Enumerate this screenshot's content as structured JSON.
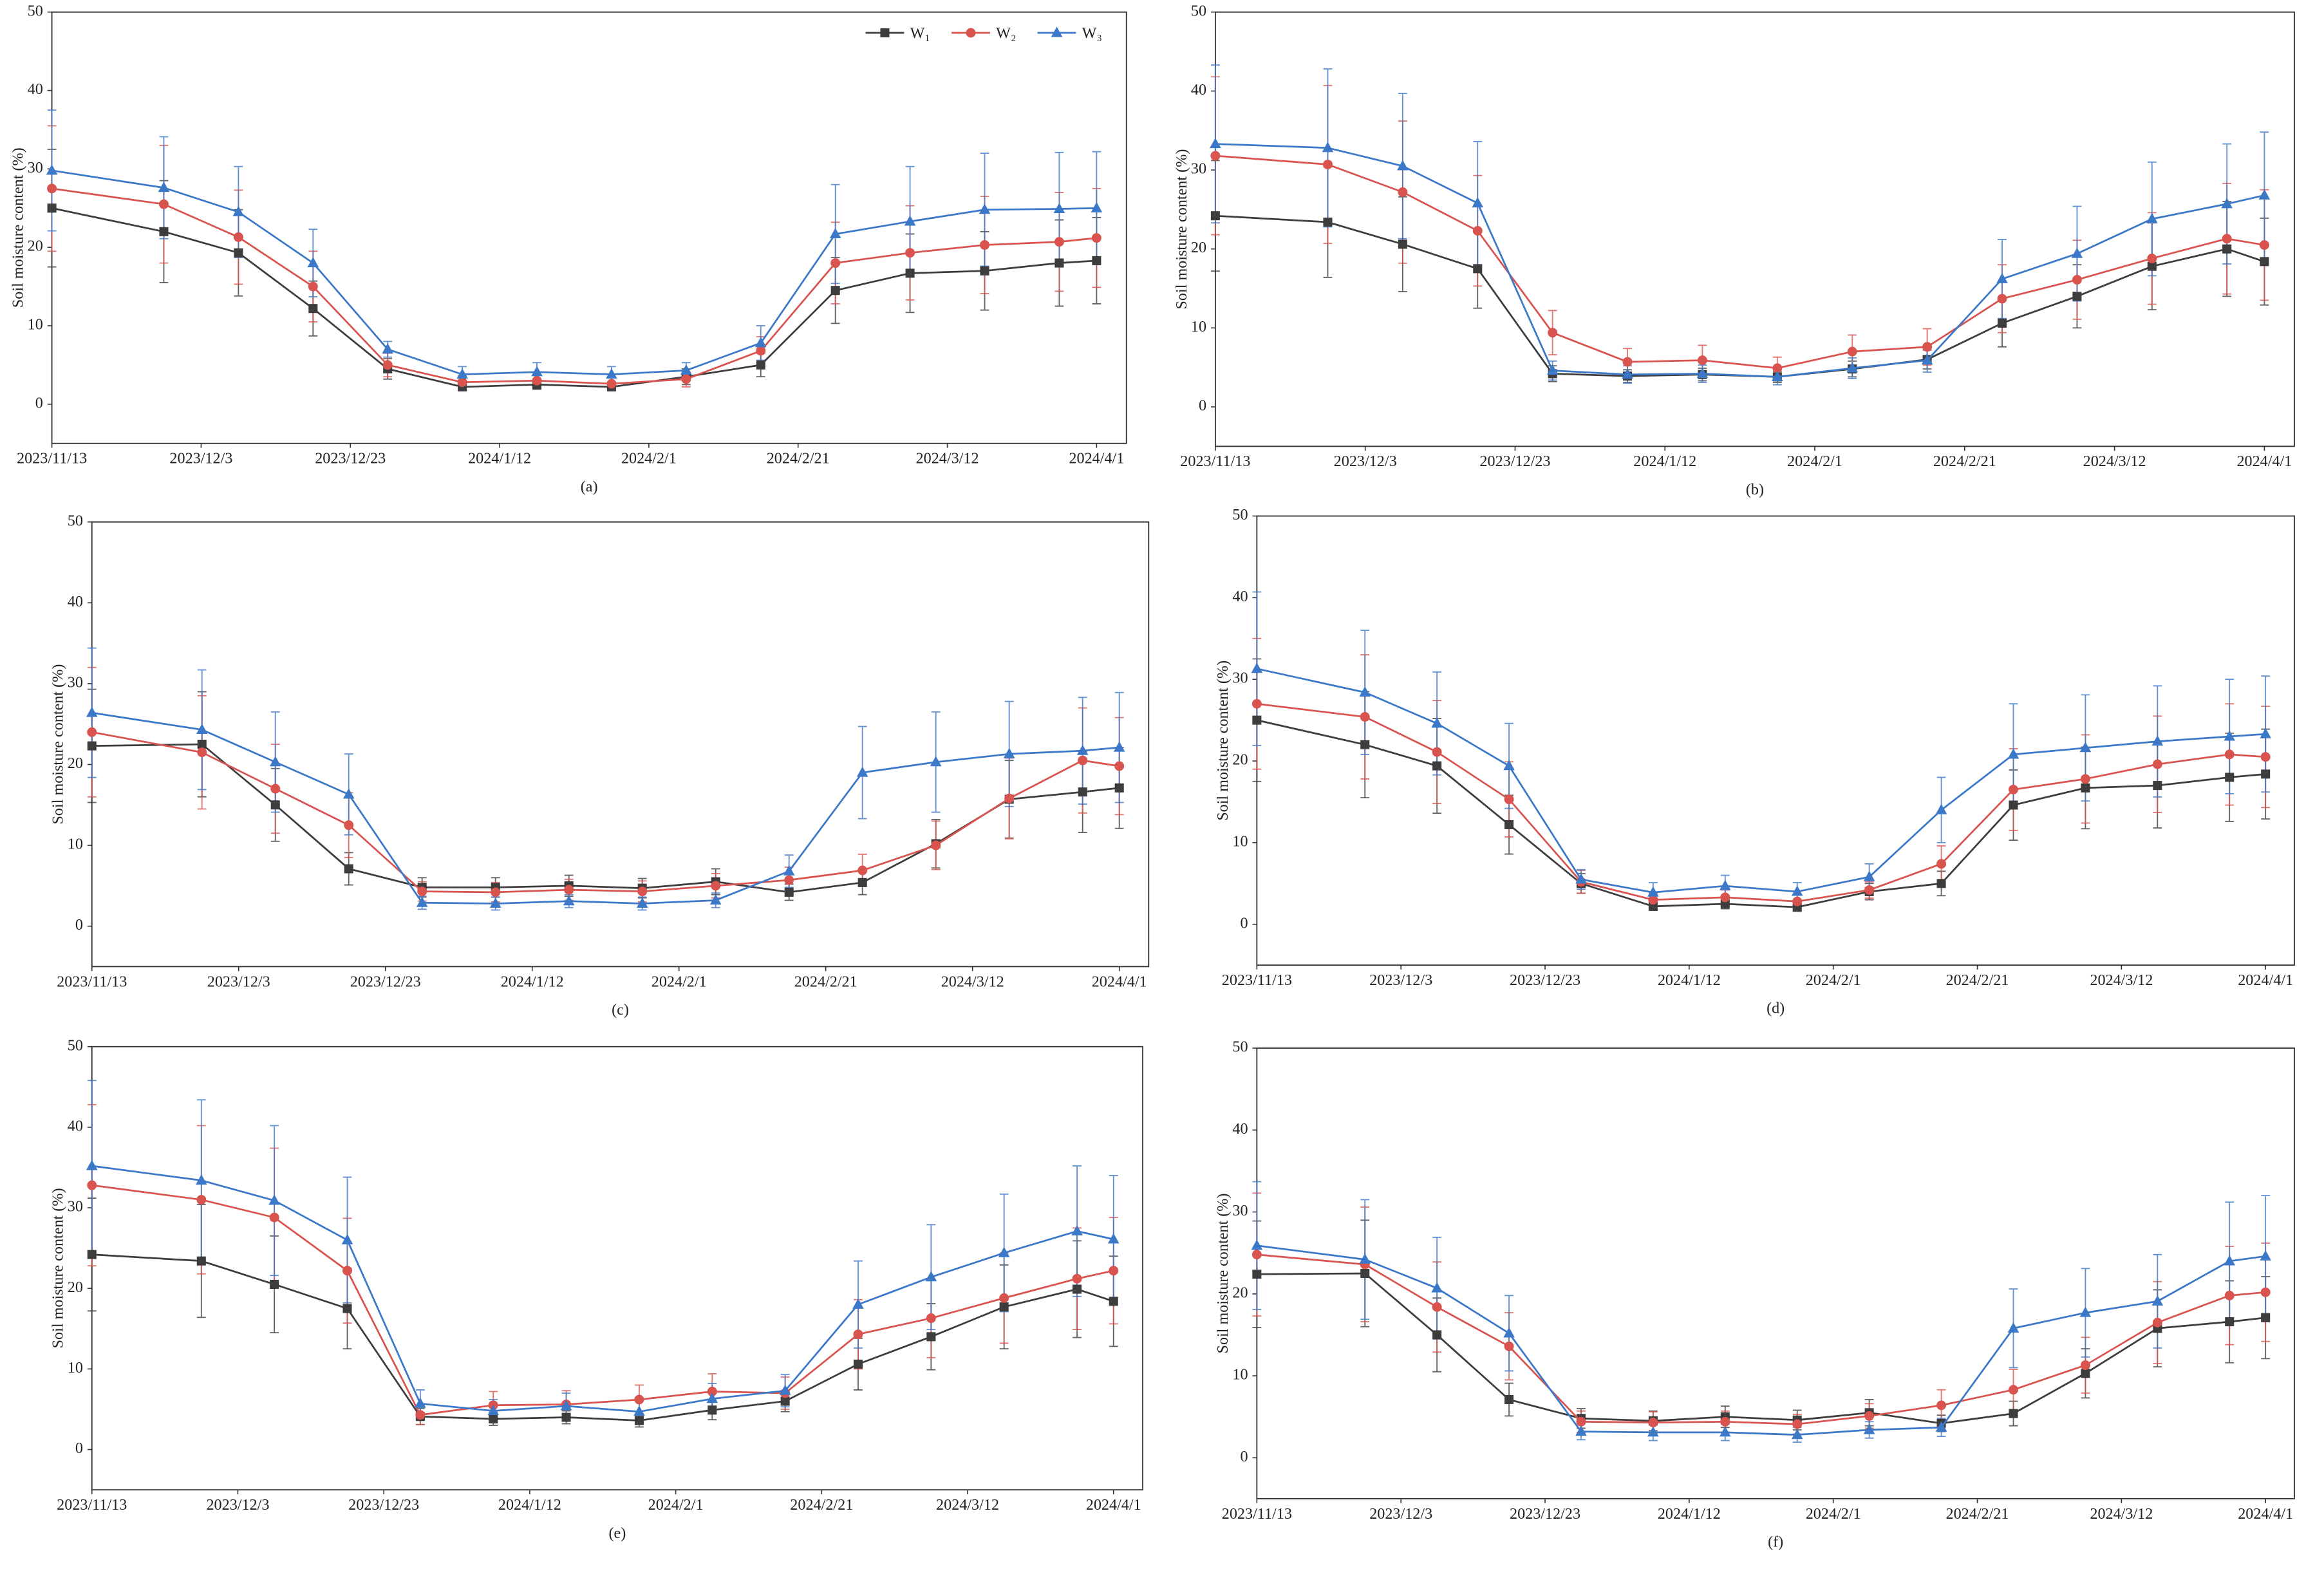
{
  "chart_data": [
    {
      "type": "line",
      "panel_label": "(a)",
      "y_label": "Soil moisture content (%)",
      "x": [
        "2023/11/13",
        "2023/11/28",
        "2023/12/8",
        "2023/12/18",
        "2023/12/28",
        "2024/1/7",
        "2024/1/17",
        "2024/1/27",
        "2024/2/6",
        "2024/2/16",
        "2024/2/26",
        "2024/3/7",
        "2024/3/17",
        "2024/3/27",
        "2024/4/1"
      ],
      "xlim": [
        "2023/11/13",
        "2024/4/5"
      ],
      "xticks": [
        "2023/11/13",
        "2023/12/3",
        "2023/12/23",
        "2024/1/12",
        "2024/2/1",
        "2024/2/21",
        "2024/3/12",
        "2024/4/1"
      ],
      "ylim": [
        -5,
        50
      ],
      "yticks": [
        0,
        10,
        20,
        30,
        40,
        50
      ],
      "legend": "upper right",
      "series": [
        {
          "name": "W₁",
          "color": "#3d3d3d",
          "marker": "square",
          "values": [
            25,
            22,
            19.3,
            12.2,
            4.5,
            2.2,
            2.5,
            2.2,
            3.5,
            5,
            14.5,
            16.7,
            17,
            18,
            18.3
          ],
          "errors": [
            7.5,
            6.5,
            5.5,
            3.5,
            1.3,
            0.5,
            0.6,
            0.5,
            1,
            1.5,
            4.2,
            5,
            5,
            5.5,
            5.5
          ]
        },
        {
          "name": "W₂",
          "color": "#d9534f",
          "marker": "circle",
          "values": [
            27.5,
            25.5,
            21.3,
            15,
            5,
            2.8,
            3,
            2.6,
            3.2,
            6.8,
            18,
            19.3,
            20.3,
            20.7,
            21.2
          ],
          "errors": [
            8,
            7.5,
            6,
            4.5,
            1.5,
            0.8,
            0.8,
            0.8,
            1,
            1.8,
            5.2,
            6,
            6.2,
            6.3,
            6.3
          ]
        },
        {
          "name": "W₃",
          "color": "#3c78c8",
          "marker": "triangle",
          "values": [
            29.8,
            27.6,
            24.5,
            18,
            7,
            3.8,
            4.1,
            3.8,
            4.3,
            7.8,
            21.7,
            23.3,
            24.8,
            24.9,
            25
          ],
          "errors": [
            7.7,
            6.5,
            5.8,
            4.3,
            1,
            1,
            1.2,
            1,
            1,
            2.2,
            6.3,
            7,
            7.2,
            7.2,
            7.2
          ]
        }
      ]
    },
    {
      "type": "line",
      "panel_label": "(b)",
      "y_label": "Soil moisture content (%)",
      "x": [
        "2023/11/13",
        "2023/11/28",
        "2023/12/8",
        "2023/12/18",
        "2023/12/28",
        "2024/1/7",
        "2024/1/17",
        "2024/1/27",
        "2024/2/6",
        "2024/2/16",
        "2024/2/26",
        "2024/3/7",
        "2024/3/17",
        "2024/3/27",
        "2024/4/1"
      ],
      "xlim": [
        "2023/11/13",
        "2024/4/5"
      ],
      "xticks": [
        "2023/11/13",
        "2023/12/3",
        "2023/12/23",
        "2024/1/12",
        "2024/2/1",
        "2024/2/21",
        "2024/3/12",
        "2024/4/1"
      ],
      "ylim": [
        -5,
        50
      ],
      "yticks": [
        0,
        10,
        20,
        30,
        40,
        50
      ],
      "series": [
        {
          "color": "#3d3d3d",
          "marker": "square",
          "values": [
            24.2,
            23.4,
            20.6,
            17.5,
            4.2,
            3.9,
            4.1,
            3.8,
            4.8,
            6,
            10.6,
            14,
            17.8,
            20,
            18.4
          ],
          "errors": [
            7,
            7,
            6,
            5,
            1,
            0.8,
            0.8,
            0.7,
            1,
            1.2,
            3,
            4,
            5.5,
            6,
            5.5
          ]
        },
        {
          "color": "#d9534f",
          "marker": "circle",
          "values": [
            31.8,
            30.7,
            27.2,
            22.3,
            9.4,
            5.7,
            5.9,
            4.9,
            7,
            7.6,
            13.7,
            16.1,
            18.8,
            21.3,
            20.5
          ],
          "errors": [
            10,
            10,
            9,
            7,
            2.8,
            1.7,
            1.9,
            1.4,
            2.1,
            2.3,
            4.3,
            5,
            5.8,
            7,
            7
          ]
        },
        {
          "color": "#3c78c8",
          "marker": "triangle",
          "values": [
            33.3,
            32.8,
            30.5,
            25.8,
            4.6,
            4.1,
            4.2,
            3.8,
            4.9,
            5.9,
            16.2,
            19.4,
            23.8,
            25.7,
            26.8
          ],
          "errors": [
            10,
            10,
            9.2,
            7.8,
            1.2,
            1.1,
            1.1,
            1,
            1.3,
            1.5,
            5,
            6,
            7.2,
            7.6,
            8
          ]
        }
      ]
    },
    {
      "type": "line",
      "panel_label": "(c)",
      "y_label": "Soil moisture content (%)",
      "x": [
        "2023/11/13",
        "2023/11/28",
        "2023/12/8",
        "2023/12/18",
        "2023/12/28",
        "2024/1/7",
        "2024/1/17",
        "2024/1/27",
        "2024/2/6",
        "2024/2/16",
        "2024/2/26",
        "2024/3/7",
        "2024/3/17",
        "2024/3/27",
        "2024/4/1"
      ],
      "xlim": [
        "2023/11/13",
        "2024/4/5"
      ],
      "xticks": [
        "2023/11/13",
        "2023/12/3",
        "2023/12/23",
        "2024/1/12",
        "2024/2/1",
        "2024/2/21",
        "2024/3/12",
        "2024/4/1"
      ],
      "ylim": [
        -5,
        50
      ],
      "yticks": [
        0,
        10,
        20,
        30,
        40,
        50
      ],
      "series": [
        {
          "color": "#3d3d3d",
          "marker": "square",
          "values": [
            22.3,
            22.5,
            15,
            7.1,
            4.8,
            4.8,
            5,
            4.7,
            5.5,
            4.2,
            5.4,
            10.2,
            15.7,
            16.6,
            17.1
          ],
          "errors": [
            7,
            6.5,
            4.5,
            2,
            1.2,
            1.2,
            1.3,
            1.2,
            1.6,
            1,
            1.5,
            3,
            4.8,
            5,
            5
          ]
        },
        {
          "color": "#d9534f",
          "marker": "circle",
          "values": [
            24,
            21.5,
            17,
            12.5,
            4.3,
            4.2,
            4.5,
            4.3,
            5,
            5.7,
            6.9,
            10,
            15.8,
            20.5,
            19.8
          ],
          "errors": [
            8,
            7,
            5.5,
            4,
            1.2,
            1.2,
            1.3,
            1.3,
            1.5,
            1.6,
            2,
            3,
            5,
            6.5,
            6
          ]
        },
        {
          "color": "#3c78c8",
          "marker": "triangle",
          "values": [
            26.4,
            24.3,
            20.3,
            16.3,
            2.9,
            2.8,
            3.1,
            2.8,
            3.2,
            6.8,
            19,
            20.3,
            21.3,
            21.7,
            22.1
          ],
          "errors": [
            8,
            7.4,
            6.2,
            5,
            0.8,
            0.8,
            0.8,
            0.8,
            0.9,
            2,
            5.7,
            6.2,
            6.5,
            6.6,
            6.8
          ]
        }
      ]
    },
    {
      "type": "line",
      "panel_label": "(d)",
      "y_label": "Soil moisture content (%)",
      "x": [
        "2023/11/13",
        "2023/11/28",
        "2023/12/8",
        "2023/12/18",
        "2023/12/28",
        "2024/1/7",
        "2024/1/17",
        "2024/1/27",
        "2024/2/6",
        "2024/2/16",
        "2024/2/26",
        "2024/3/7",
        "2024/3/17",
        "2024/3/27",
        "2024/4/1"
      ],
      "xlim": [
        "2023/11/13",
        "2024/4/5"
      ],
      "xticks": [
        "2023/11/13",
        "2023/12/3",
        "2023/12/23",
        "2024/1/12",
        "2024/2/1",
        "2024/2/21",
        "2024/3/12",
        "2024/4/1"
      ],
      "ylim": [
        -5,
        50
      ],
      "yticks": [
        0,
        10,
        20,
        30,
        40,
        50
      ],
      "series": [
        {
          "color": "#3d3d3d",
          "marker": "square",
          "values": [
            25,
            22,
            19.4,
            12.2,
            5,
            2.2,
            2.5,
            2.1,
            4,
            5,
            14.6,
            16.7,
            17,
            18,
            18.4
          ],
          "errors": [
            7.5,
            6.5,
            5.8,
            3.6,
            1.2,
            0.5,
            0.6,
            0.5,
            1,
            1.5,
            4.3,
            5,
            5.2,
            5.4,
            5.5
          ]
        },
        {
          "color": "#d9534f",
          "marker": "circle",
          "values": [
            27,
            25.4,
            21.1,
            15.3,
            5.2,
            3,
            3.3,
            2.8,
            4.2,
            7.4,
            16.5,
            17.8,
            19.6,
            20.8,
            20.5
          ],
          "errors": [
            8,
            7.6,
            6.3,
            4.6,
            1.4,
            0.8,
            0.9,
            0.8,
            1,
            2.2,
            5,
            5.4,
            5.9,
            6.2,
            6.2
          ]
        },
        {
          "color": "#3c78c8",
          "marker": "triangle",
          "values": [
            31.3,
            28.4,
            24.6,
            19.4,
            5.5,
            3.9,
            4.7,
            4,
            5.8,
            14,
            20.8,
            21.6,
            22.4,
            23,
            23.3
          ],
          "errors": [
            9.4,
            7.6,
            6.3,
            5.2,
            1.2,
            1.2,
            1.3,
            1.1,
            1.6,
            4,
            6.2,
            6.5,
            6.8,
            7,
            7.1
          ]
        }
      ]
    },
    {
      "type": "line",
      "panel_label": "(e)",
      "y_label": "Soil moisture content (%)",
      "x": [
        "2023/11/13",
        "2023/11/28",
        "2023/12/8",
        "2023/12/18",
        "2023/12/28",
        "2024/1/7",
        "2024/1/17",
        "2024/1/27",
        "2024/2/6",
        "2024/2/16",
        "2024/2/26",
        "2024/3/7",
        "2024/3/17",
        "2024/3/27",
        "2024/4/1"
      ],
      "xlim": [
        "2023/11/13",
        "2024/4/5"
      ],
      "xticks": [
        "2023/11/13",
        "2023/12/3",
        "2023/12/23",
        "2024/1/12",
        "2024/2/1",
        "2024/2/21",
        "2024/3/12",
        "2024/4/1"
      ],
      "ylim": [
        -5,
        50
      ],
      "yticks": [
        0,
        10,
        20,
        30,
        40,
        50
      ],
      "series": [
        {
          "color": "#3d3d3d",
          "marker": "square",
          "values": [
            24.2,
            23.4,
            20.5,
            17.5,
            4.1,
            3.8,
            4,
            3.6,
            4.9,
            6,
            10.6,
            14,
            17.7,
            19.9,
            18.4
          ],
          "errors": [
            7,
            7,
            6,
            5,
            1,
            0.8,
            0.8,
            0.8,
            1.2,
            1.3,
            3.2,
            4.1,
            5.2,
            6,
            5.6
          ]
        },
        {
          "color": "#d9534f",
          "marker": "circle",
          "values": [
            32.8,
            31,
            28.8,
            22.2,
            4.3,
            5.5,
            5.6,
            6.2,
            7.2,
            7,
            14.3,
            16.3,
            18.8,
            21.2,
            22.2
          ],
          "errors": [
            10,
            9.2,
            8.6,
            6.5,
            1.2,
            1.7,
            1.7,
            1.8,
            2.2,
            2,
            4.3,
            4.9,
            5.6,
            6.3,
            6.6
          ]
        },
        {
          "color": "#3c78c8",
          "marker": "triangle",
          "values": [
            35.2,
            33.4,
            30.9,
            26,
            5.7,
            4.8,
            5.4,
            4.7,
            6.3,
            7.3,
            18,
            21.4,
            24.4,
            27.1,
            26.1
          ],
          "errors": [
            10.6,
            10,
            9.3,
            7.8,
            1.7,
            1.4,
            1.6,
            1.4,
            1.9,
            2,
            5.4,
            6.5,
            7.3,
            8.1,
            7.9
          ]
        }
      ]
    },
    {
      "type": "line",
      "panel_label": "(f)",
      "y_label": "Soil moisture content (%)",
      "x": [
        "2023/11/13",
        "2023/11/28",
        "2023/12/8",
        "2023/12/18",
        "2023/12/28",
        "2024/1/7",
        "2024/1/17",
        "2024/1/27",
        "2024/2/6",
        "2024/2/16",
        "2024/2/26",
        "2024/3/7",
        "2024/3/17",
        "2024/3/27",
        "2024/4/1"
      ],
      "xlim": [
        "2023/11/13",
        "2024/4/5"
      ],
      "xticks": [
        "2023/11/13",
        "2023/12/3",
        "2023/12/23",
        "2024/1/12",
        "2024/2/1",
        "2024/2/21",
        "2024/3/12",
        "2024/4/1"
      ],
      "ylim": [
        -5,
        50
      ],
      "yticks": [
        0,
        10,
        20,
        30,
        40,
        50
      ],
      "series": [
        {
          "color": "#3d3d3d",
          "marker": "square",
          "values": [
            22.4,
            22.5,
            15,
            7.1,
            4.8,
            4.5,
            5,
            4.6,
            5.5,
            4.2,
            5.4,
            10.3,
            15.8,
            16.6,
            17.1
          ],
          "errors": [
            6.5,
            6.5,
            4.5,
            2,
            1.2,
            1.2,
            1.3,
            1.2,
            1.6,
            1,
            1.5,
            3,
            4.7,
            5,
            5
          ]
        },
        {
          "color": "#d9534f",
          "marker": "circle",
          "values": [
            24.8,
            23.6,
            18.4,
            13.6,
            4.4,
            4.3,
            4.4,
            4.1,
            5.1,
            6.4,
            8.3,
            11.3,
            16.5,
            19.8,
            20.2
          ],
          "errors": [
            7.5,
            7,
            5.5,
            4.1,
            1.3,
            1.3,
            1.3,
            1.2,
            1.5,
            1.9,
            2.5,
            3.4,
            5,
            6,
            6
          ]
        },
        {
          "color": "#3c78c8",
          "marker": "triangle",
          "values": [
            25.9,
            24.2,
            20.7,
            15.2,
            3.2,
            3.1,
            3.1,
            2.8,
            3.4,
            3.7,
            15.8,
            17.7,
            19.1,
            24,
            24.6
          ],
          "errors": [
            7.8,
            7.3,
            6.2,
            4.6,
            1,
            1,
            1,
            0.9,
            1,
            1.1,
            4.8,
            5.4,
            5.7,
            7.2,
            7.4
          ]
        }
      ]
    }
  ]
}
